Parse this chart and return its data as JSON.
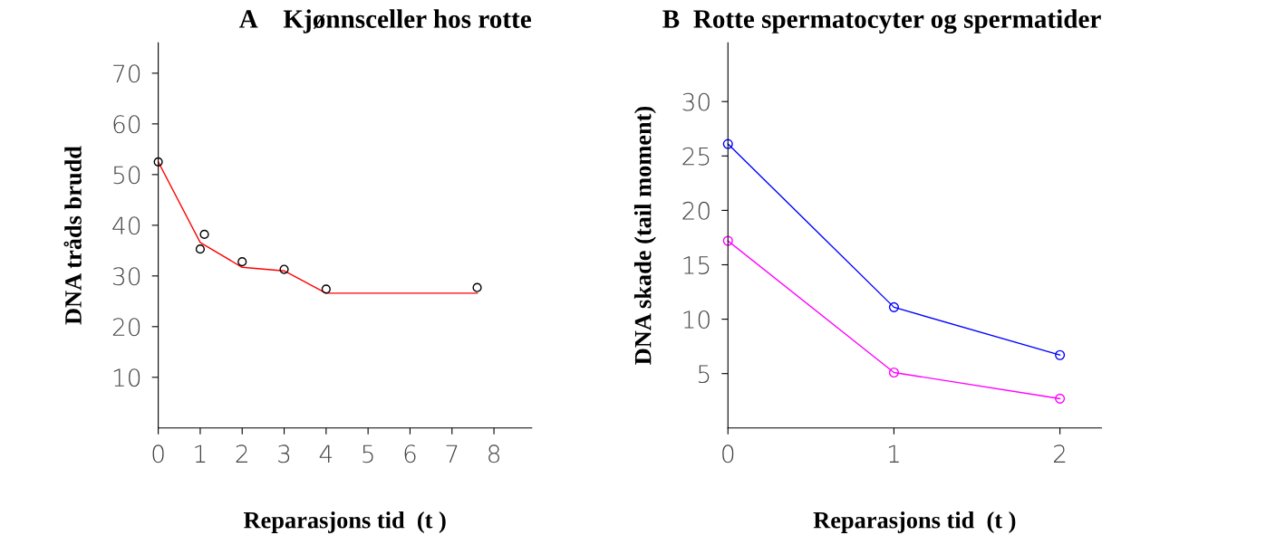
{
  "chart_data": [
    {
      "type": "scatter",
      "title": "A    Kjønnsceller hos rotte",
      "xlabel": "Reparasjons tid  (t )",
      "ylabel": "DNA tråds brudd",
      "xlim": [
        0,
        8.9
      ],
      "ylim": [
        0,
        76
      ],
      "xticks": [
        0,
        1,
        2,
        3,
        4,
        5,
        6,
        7,
        8
      ],
      "yticks": [
        10,
        20,
        30,
        40,
        50,
        60,
        70
      ],
      "grid": false,
      "legend": false,
      "series": [
        {
          "color": "#000000",
          "marker": "circle",
          "x": [
            0,
            1.0,
            1.1,
            2,
            3,
            4,
            7.6
          ],
          "values": [
            52.5,
            35.3,
            38.2,
            32.8,
            31.3,
            27.4,
            27.7
          ]
        },
        {
          "type": "line",
          "color": "#ff0000",
          "marker": "none",
          "x": [
            0,
            1,
            2,
            3,
            4,
            7.6
          ],
          "values": [
            52.5,
            36.6,
            31.7,
            31.0,
            26.6,
            26.6
          ]
        }
      ]
    },
    {
      "type": "line",
      "title": "B  Rotte spermatocyter og spermatider",
      "xlabel": "Reparasjons tid  (t )",
      "ylabel": "DNA skade (tail moment)",
      "xlim": [
        0,
        2.25
      ],
      "ylim": [
        0,
        35.4
      ],
      "xticks": [
        0,
        1,
        2
      ],
      "yticks": [
        5,
        10,
        15,
        20,
        25,
        30
      ],
      "grid": false,
      "legend": false,
      "series": [
        {
          "color": "#0000ff",
          "marker": "circle",
          "x": [
            0,
            1,
            2
          ],
          "values": [
            26.1,
            11.1,
            6.7
          ]
        },
        {
          "color": "#ff00ff",
          "marker": "circle",
          "x": [
            0,
            1,
            2
          ],
          "values": [
            17.2,
            5.1,
            2.7
          ]
        }
      ]
    }
  ]
}
